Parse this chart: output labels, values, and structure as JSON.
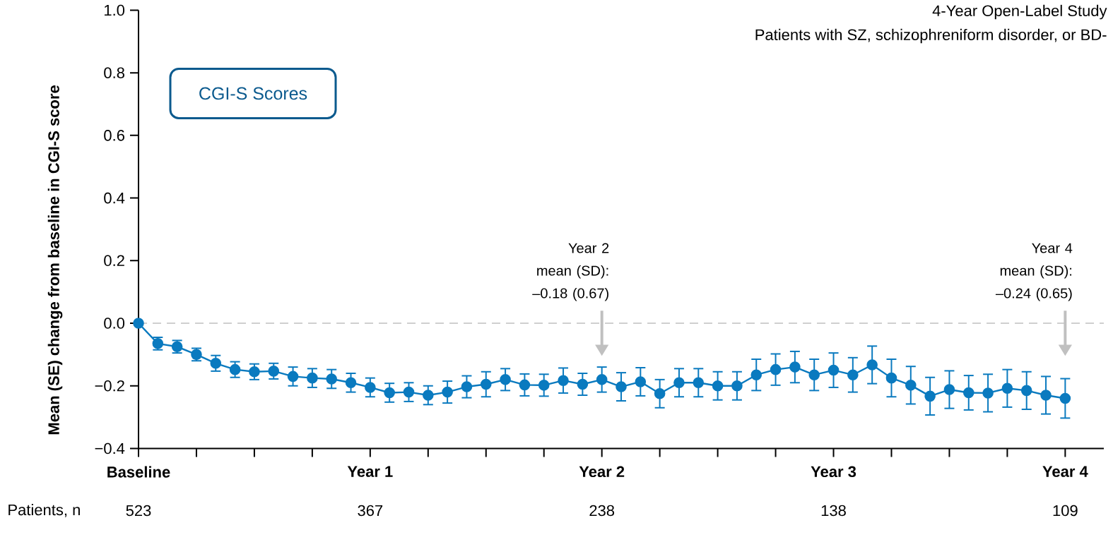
{
  "chart_data": {
    "type": "line",
    "title": "4-Year Open-Label Study",
    "subtitle": "Patients with SZ, schizophreniform disorder, or BD-",
    "ylabel": "Mean (SE) change from baseline in CGI-S score",
    "categories": [
      "Baseline",
      null,
      null,
      null,
      null,
      null,
      null,
      null,
      null,
      null,
      null,
      null,
      "Year 1",
      null,
      null,
      null,
      null,
      null,
      null,
      null,
      null,
      null,
      null,
      null,
      "Year 2",
      null,
      null,
      null,
      null,
      null,
      null,
      null,
      null,
      null,
      null,
      null,
      "Year 3",
      null,
      null,
      null,
      null,
      null,
      null,
      null,
      null,
      null,
      null,
      null,
      "Year 4"
    ],
    "series": [
      {
        "color": "#0a7abf",
        "values": [
          0,
          -0.065,
          -0.075,
          -0.1,
          -0.128,
          -0.148,
          -0.155,
          -0.153,
          -0.17,
          -0.175,
          -0.178,
          -0.19,
          -0.205,
          -0.222,
          -0.22,
          -0.23,
          -0.22,
          -0.203,
          -0.195,
          -0.18,
          -0.197,
          -0.198,
          -0.183,
          -0.195,
          -0.18,
          -0.203,
          -0.187,
          -0.225,
          -0.19,
          -0.19,
          -0.2,
          -0.2,
          -0.165,
          -0.148,
          -0.14,
          -0.165,
          -0.15,
          -0.165,
          -0.133,
          -0.175,
          -0.198,
          -0.233,
          -0.212,
          -0.222,
          -0.223,
          -0.208,
          -0.215,
          -0.23,
          -0.24
        ],
        "errors": [
          null,
          0.02,
          0.02,
          0.02,
          0.025,
          0.025,
          0.025,
          0.025,
          0.03,
          0.03,
          0.03,
          0.03,
          0.03,
          0.03,
          0.03,
          0.03,
          0.035,
          0.035,
          0.04,
          0.035,
          0.035,
          0.035,
          0.04,
          0.035,
          0.04,
          0.045,
          0.045,
          0.045,
          0.045,
          0.045,
          0.045,
          0.045,
          0.05,
          0.05,
          0.05,
          0.05,
          0.055,
          0.055,
          0.06,
          0.06,
          0.06,
          0.06,
          0.06,
          0.055,
          0.06,
          0.06,
          0.06,
          0.06,
          0.063
        ]
      }
    ],
    "marker": "circle",
    "line_style": "solid",
    "ylim": [
      -0.4,
      1.0
    ],
    "yticks": [
      {
        "value": -0.4,
        "label": "−0.4"
      },
      {
        "value": -0.2,
        "label": "−0.2"
      },
      {
        "value": 0,
        "label": "0.0"
      },
      {
        "value": 0.2,
        "label": "0.2"
      },
      {
        "value": 0.4,
        "label": "0.4"
      },
      {
        "value": 0.6,
        "label": "0.6"
      },
      {
        "value": 0.8,
        "label": "0.8"
      },
      {
        "value": 1.0,
        "label": "1.0"
      }
    ],
    "ref_lines": [
      {
        "axis": "y",
        "value": 0,
        "color": "#c0c0c0",
        "line_style": "dashed"
      }
    ],
    "annotations": [
      "CGI-S Scores",
      "Patients, n",
      "523",
      "367",
      "238",
      "138",
      "109",
      "Year 2 mean (SD): –0.18 (0.67)",
      "Year 4 mean (SD): –0.24 (0.65)"
    ]
  }
}
